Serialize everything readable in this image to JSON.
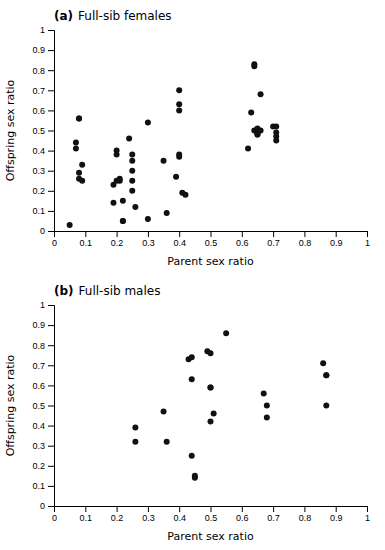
{
  "chart_data": [
    {
      "type": "scatter",
      "title": "(a)",
      "subtitle": "Full-sib females",
      "xlabel": "Parent sex ratio",
      "ylabel": "Offspring sex ratio",
      "x": [
        0.05,
        0.07,
        0.07,
        0.08,
        0.08,
        0.08,
        0.08,
        0.09,
        0.09,
        0.19,
        0.19,
        0.2,
        0.2,
        0.2,
        0.21,
        0.21,
        0.22,
        0.22,
        0.22,
        0.24,
        0.25,
        0.25,
        0.25,
        0.25,
        0.25,
        0.26,
        0.3,
        0.3,
        0.35,
        0.36,
        0.39,
        0.4,
        0.4,
        0.4,
        0.4,
        0.4,
        0.41,
        0.42,
        0.62,
        0.63,
        0.64,
        0.64,
        0.64,
        0.65,
        0.65,
        0.65,
        0.65,
        0.66,
        0.66,
        0.7,
        0.71,
        0.71,
        0.71,
        0.71
      ],
      "values": [
        0.03,
        0.44,
        0.41,
        0.56,
        0.56,
        0.29,
        0.26,
        0.33,
        0.25,
        0.23,
        0.14,
        0.4,
        0.38,
        0.25,
        0.26,
        0.25,
        0.15,
        0.05,
        0.05,
        0.46,
        0.38,
        0.35,
        0.3,
        0.25,
        0.2,
        0.12,
        0.54,
        0.06,
        0.35,
        0.09,
        0.27,
        0.7,
        0.63,
        0.6,
        0.38,
        0.37,
        0.19,
        0.18,
        0.41,
        0.59,
        0.83,
        0.82,
        0.5,
        0.51,
        0.49,
        0.48,
        0.48,
        0.68,
        0.5,
        0.52,
        0.52,
        0.49,
        0.47,
        0.45
      ],
      "color": "#111111",
      "xlim": [
        0,
        1
      ],
      "ylim": [
        0,
        1
      ],
      "xticks": [
        0,
        0.1,
        0.2,
        0.3,
        0.4,
        0.5,
        0.6,
        0.7,
        0.8,
        0.9,
        1
      ],
      "yticks": [
        0,
        0.1,
        0.2,
        0.3,
        0.4,
        0.5,
        0.6,
        0.7,
        0.8,
        0.9,
        1
      ],
      "grid": false
    },
    {
      "type": "scatter",
      "title": "(b)",
      "subtitle": "Full-sib males",
      "xlabel": "Parent sex ratio",
      "ylabel": "Offspring sex ratio",
      "x": [
        0.26,
        0.26,
        0.35,
        0.36,
        0.43,
        0.44,
        0.44,
        0.44,
        0.45,
        0.45,
        0.49,
        0.5,
        0.5,
        0.5,
        0.5,
        0.51,
        0.55,
        0.67,
        0.68,
        0.68,
        0.86,
        0.87,
        0.87,
        0.87
      ],
      "values": [
        0.39,
        0.32,
        0.47,
        0.32,
        0.73,
        0.74,
        0.63,
        0.25,
        0.15,
        0.14,
        0.77,
        0.76,
        0.59,
        0.59,
        0.42,
        0.46,
        0.86,
        0.56,
        0.5,
        0.44,
        0.71,
        0.65,
        0.65,
        0.5
      ],
      "color": "#111111",
      "xlim": [
        0,
        1
      ],
      "ylim": [
        0,
        1
      ],
      "xticks": [
        0,
        0.1,
        0.2,
        0.3,
        0.4,
        0.5,
        0.6,
        0.7,
        0.8,
        0.9,
        1
      ],
      "yticks": [
        0,
        0.1,
        0.2,
        0.3,
        0.4,
        0.5,
        0.6,
        0.7,
        0.8,
        0.9,
        1
      ],
      "grid": false
    }
  ]
}
